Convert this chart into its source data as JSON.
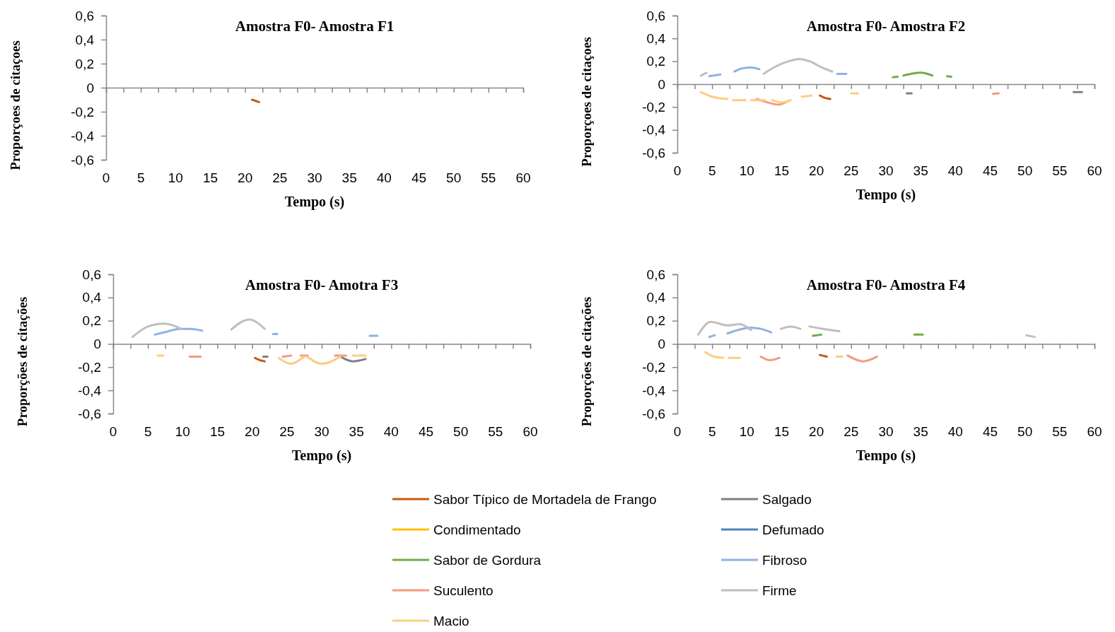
{
  "chart_data": [
    {
      "type": "line",
      "title": "Amostra F0- Amostra F1",
      "xlabel": "Tempo (s)",
      "ylabel": "Proporçoes de citaçoes",
      "xlim": [
        0,
        60
      ],
      "ylim": [
        -0.6,
        0.6
      ],
      "xticks": [
        0,
        {
          "value": 2.5,
          "label": null
        },
        5,
        {
          "value": 7.5,
          "label": null
        },
        10,
        {
          "value": 12.5,
          "label": null
        },
        15,
        {
          "value": 17.5,
          "label": null
        },
        20,
        {
          "value": 22.5,
          "label": null
        },
        25,
        {
          "value": 27.5,
          "label": null
        },
        30,
        {
          "value": 32.5,
          "label": null
        },
        35,
        {
          "value": 37.5,
          "label": null
        },
        40,
        {
          "value": 42.5,
          "label": null
        },
        45,
        {
          "value": 47.5,
          "label": null
        },
        50,
        {
          "value": 52.5,
          "label": null
        },
        55,
        {
          "value": 57.5,
          "label": null
        },
        60
      ],
      "yticks": [
        {
          "value": -0.6,
          "label": "-0,6"
        },
        {
          "value": -0.4,
          "label": "-0,4"
        },
        {
          "value": -0.2,
          "label": "-0,2"
        },
        {
          "value": 0,
          "label": "0"
        },
        {
          "value": 0.2,
          "label": "0,2"
        },
        {
          "value": 0.4,
          "label": "0,4"
        },
        {
          "value": 0.6,
          "label": "0,6"
        }
      ],
      "series": [
        {
          "color": "#c55a11",
          "x": [
            21,
            22
          ],
          "values": [
            -0.1,
            -0.12
          ]
        }
      ]
    },
    {
      "type": "line",
      "title": "Amostra F0- Amostra F2",
      "xlabel": "Tempo (s)",
      "ylabel": "Proporçoes de citaçoes",
      "xlim": [
        0,
        60
      ],
      "ylim": [
        -0.6,
        0.6
      ],
      "xticks": [
        0,
        {
          "value": 2.5,
          "label": null
        },
        5,
        {
          "value": 7.5,
          "label": null
        },
        10,
        {
          "value": 12.5,
          "label": null
        },
        15,
        {
          "value": 17.5,
          "label": null
        },
        20,
        {
          "value": 22.5,
          "label": null
        },
        25,
        {
          "value": 27.5,
          "label": null
        },
        30,
        {
          "value": 32.5,
          "label": null
        },
        35,
        {
          "value": 37.5,
          "label": null
        },
        40,
        {
          "value": 42.5,
          "label": null
        },
        45,
        {
          "value": 47.5,
          "label": null
        },
        50,
        {
          "value": 52.5,
          "label": null
        },
        55,
        {
          "value": 57.5,
          "label": null
        },
        60
      ],
      "yticks": [
        {
          "value": -0.6,
          "label": "-0,6"
        },
        {
          "value": -0.4,
          "label": "-0,4"
        },
        {
          "value": -0.2,
          "label": "-0,2"
        },
        {
          "value": 0,
          "label": "0"
        },
        {
          "value": 0.2,
          "label": "0,2"
        },
        {
          "value": 0.4,
          "label": "0,4"
        },
        {
          "value": 0.6,
          "label": "0,6"
        }
      ],
      "series": [
        {
          "color": "#c55a11",
          "x": [
            20.5,
            21.2,
            22
          ],
          "values": [
            -0.1,
            -0.12,
            -0.13
          ]
        },
        {
          "color": "#7f7f7f",
          "x": [
            33,
            33.7,
            null,
            57,
            58.2
          ],
          "values": [
            -0.08,
            -0.08,
            null,
            -0.07,
            -0.07
          ]
        },
        {
          "color": "#70ad47",
          "x": [
            31,
            31.7,
            null,
            32.5,
            34,
            35,
            36,
            36.7,
            null,
            38.8,
            39.4
          ],
          "values": [
            0.06,
            0.065,
            null,
            0.075,
            0.095,
            0.1,
            0.09,
            0.075,
            null,
            0.07,
            0.065
          ]
        },
        {
          "color": "#8db3e2",
          "x": [
            4.6,
            6.2,
            null,
            8.2,
            9.5,
            10.6,
            11.8,
            null,
            23,
            24.3
          ],
          "values": [
            0.07,
            0.085,
            null,
            0.11,
            0.14,
            0.145,
            0.13,
            null,
            0.09,
            0.09
          ]
        },
        {
          "color": "#f19c7f",
          "x": [
            11.4,
            13,
            14.5,
            15.9,
            null,
            45.4,
            46.2
          ],
          "values": [
            -0.13,
            -0.16,
            -0.18,
            -0.15,
            null,
            -0.085,
            -0.08
          ]
        },
        {
          "color": "#bfbfbf",
          "x": [
            3.4,
            4.2,
            null,
            12.4,
            14,
            16,
            17.5,
            19,
            21,
            22.3
          ],
          "values": [
            0.075,
            0.1,
            null,
            0.09,
            0.15,
            0.2,
            0.22,
            0.2,
            0.14,
            0.11
          ]
        },
        {
          "color": "#ffcc80",
          "x": [
            3.4,
            5,
            7.2,
            null,
            8,
            9.8,
            null,
            10.6,
            12.6,
            null,
            13.6,
            15,
            16.3,
            null,
            17.9,
            19.3,
            null,
            25,
            26
          ],
          "values": [
            -0.07,
            -0.11,
            -0.13,
            null,
            -0.14,
            -0.14,
            null,
            -0.14,
            -0.14,
            null,
            -0.14,
            -0.16,
            -0.14,
            null,
            -0.11,
            -0.1,
            null,
            -0.08,
            -0.08
          ]
        }
      ]
    },
    {
      "type": "line",
      "title": "Amostra F0- Amotra F3",
      "xlabel": "Tempo (s)",
      "ylabel": "Proporções de citações",
      "xlim": [
        0,
        60
      ],
      "ylim": [
        -0.6,
        0.6
      ],
      "xticks": [
        0,
        {
          "value": 2.5,
          "label": null
        },
        5,
        {
          "value": 7.5,
          "label": null
        },
        10,
        {
          "value": 12.5,
          "label": null
        },
        15,
        {
          "value": 17.5,
          "label": null
        },
        20,
        {
          "value": 22.5,
          "label": null
        },
        25,
        {
          "value": 27.5,
          "label": null
        },
        30,
        {
          "value": 32.5,
          "label": null
        },
        35,
        {
          "value": 37.5,
          "label": null
        },
        40,
        {
          "value": 42.5,
          "label": null
        },
        45,
        {
          "value": 47.5,
          "label": null
        },
        50,
        {
          "value": 52.5,
          "label": null
        },
        55,
        {
          "value": 57.5,
          "label": null
        },
        60
      ],
      "yticks": [
        {
          "value": -0.6,
          "label": "-0,6"
        },
        {
          "value": -0.4,
          "label": "-0,4"
        },
        {
          "value": -0.2,
          "label": "-0,2"
        },
        {
          "value": 0,
          "label": "0"
        },
        {
          "value": 0.2,
          "label": "0,2"
        },
        {
          "value": 0.4,
          "label": "0,4"
        },
        {
          "value": 0.6,
          "label": "0,6"
        }
      ],
      "series": [
        {
          "color": "#c55a11",
          "x": [
            20.4,
            21.1,
            21.8
          ],
          "values": [
            -0.12,
            -0.14,
            -0.15
          ]
        },
        {
          "color": "#7f7f7f",
          "x": [
            21.6,
            22.2,
            null,
            32.7,
            34.5,
            36.3
          ],
          "values": [
            -0.11,
            -0.11,
            null,
            -0.11,
            -0.15,
            -0.13
          ]
        },
        {
          "color": "#8db3e2",
          "x": [
            6,
            8,
            9.5,
            11,
            12.8,
            null,
            23,
            23.6,
            null,
            36.9,
            38
          ],
          "values": [
            0.08,
            0.11,
            0.13,
            0.13,
            0.115,
            null,
            0.085,
            0.085,
            null,
            0.07,
            0.07
          ]
        },
        {
          "color": "#f19c7f",
          "x": [
            11,
            12.6,
            null,
            24.4,
            25.6,
            null,
            27,
            28,
            null,
            31.9,
            33.5
          ],
          "values": [
            -0.11,
            -0.11,
            null,
            -0.11,
            -0.1,
            null,
            -0.1,
            -0.1,
            null,
            -0.1,
            -0.1
          ]
        },
        {
          "color": "#bfbfbf",
          "x": [
            2.8,
            5,
            7.4,
            9.8,
            null,
            17,
            19.6,
            21.8
          ],
          "values": [
            0.06,
            0.15,
            0.175,
            0.13,
            null,
            0.125,
            0.21,
            0.13
          ]
        },
        {
          "color": "#ffcc80",
          "x": [
            6.4,
            7.2,
            null,
            23.8,
            25.5,
            27.5,
            null,
            27.9,
            30,
            32.7,
            null,
            34.5,
            36.3
          ],
          "values": [
            -0.1,
            -0.1,
            null,
            -0.12,
            -0.17,
            -0.11,
            null,
            -0.11,
            -0.17,
            -0.11,
            null,
            -0.1,
            -0.1
          ]
        }
      ]
    },
    {
      "type": "line",
      "title": "Amostra F0- Amostra F4",
      "xlabel": "Tempo (s)",
      "ylabel": "Proporções de citações",
      "xlim": [
        0,
        60
      ],
      "ylim": [
        -0.6,
        0.6
      ],
      "legend": "bottom",
      "xticks": [
        0,
        {
          "value": 2.5,
          "label": null
        },
        5,
        {
          "value": 7.5,
          "label": null
        },
        10,
        {
          "value": 12.5,
          "label": null
        },
        15,
        {
          "value": 17.5,
          "label": null
        },
        20,
        {
          "value": 22.5,
          "label": null
        },
        25,
        {
          "value": 27.5,
          "label": null
        },
        30,
        {
          "value": 32.5,
          "label": null
        },
        35,
        {
          "value": 37.5,
          "label": null
        },
        40,
        {
          "value": 42.5,
          "label": null
        },
        45,
        {
          "value": 47.5,
          "label": null
        },
        50,
        {
          "value": 52.5,
          "label": null
        },
        55,
        {
          "value": 57.5,
          "label": null
        },
        60
      ],
      "yticks": [
        {
          "value": -0.6,
          "label": "-0,6"
        },
        {
          "value": -0.4,
          "label": "-0,4"
        },
        {
          "value": -0.2,
          "label": "-0,2"
        },
        {
          "value": 0,
          "label": "0"
        },
        {
          "value": 0.2,
          "label": "0,2"
        },
        {
          "value": 0.4,
          "label": "0,4"
        },
        {
          "value": 0.6,
          "label": "0,6"
        }
      ],
      "series": [
        {
          "name": "Sabor Típico de Mortadela de Frango",
          "color": "#c55a11",
          "x": [
            20.5,
            21.5
          ],
          "values": [
            -0.095,
            -0.11
          ]
        },
        {
          "name": "Salgado",
          "color": "#7f7f7f"
        },
        {
          "name": "Condimentado",
          "color": "#ffc000"
        },
        {
          "name": "Defumado",
          "color": "#4f81bd"
        },
        {
          "name": "Sabor de Gordura",
          "color": "#70ad47",
          "x": [
            19.5,
            20.7,
            null,
            34.1,
            35.3
          ],
          "values": [
            0.07,
            0.08,
            null,
            0.08,
            0.08
          ]
        },
        {
          "name": "Fibroso",
          "color": "#8db3e2",
          "x": [
            4.6,
            5.4,
            null,
            7.2,
            9,
            10.5,
            12,
            13.5
          ],
          "values": [
            0.06,
            0.075,
            null,
            0.09,
            0.125,
            0.14,
            0.13,
            0.1
          ]
        },
        {
          "name": "Suculento",
          "color": "#f19c7f",
          "x": [
            12,
            13.3,
            14.7,
            null,
            24.5,
            26.7,
            28.7
          ],
          "values": [
            -0.11,
            -0.14,
            -0.12,
            null,
            -0.1,
            -0.15,
            -0.11
          ]
        },
        {
          "name": "Firme",
          "color": "#bfbfbf",
          "x": [
            3,
            4.8,
            7.2,
            9,
            10.6,
            null,
            14.9,
            16.3,
            17.7,
            null,
            19,
            21,
            23.3,
            null,
            50.2,
            51.4
          ],
          "values": [
            0.08,
            0.19,
            0.16,
            0.17,
            0.12,
            null,
            0.13,
            0.15,
            0.13,
            null,
            0.15,
            0.13,
            0.11,
            null,
            0.075,
            0.06
          ]
        },
        {
          "name": "Macio",
          "color": "#ffcc80",
          "x": [
            4,
            5.3,
            6.6,
            null,
            7.4,
            9,
            null,
            22.9,
            23.7
          ],
          "values": [
            -0.07,
            -0.11,
            -0.12,
            null,
            -0.12,
            -0.12,
            null,
            -0.11,
            -0.11
          ]
        }
      ]
    }
  ]
}
